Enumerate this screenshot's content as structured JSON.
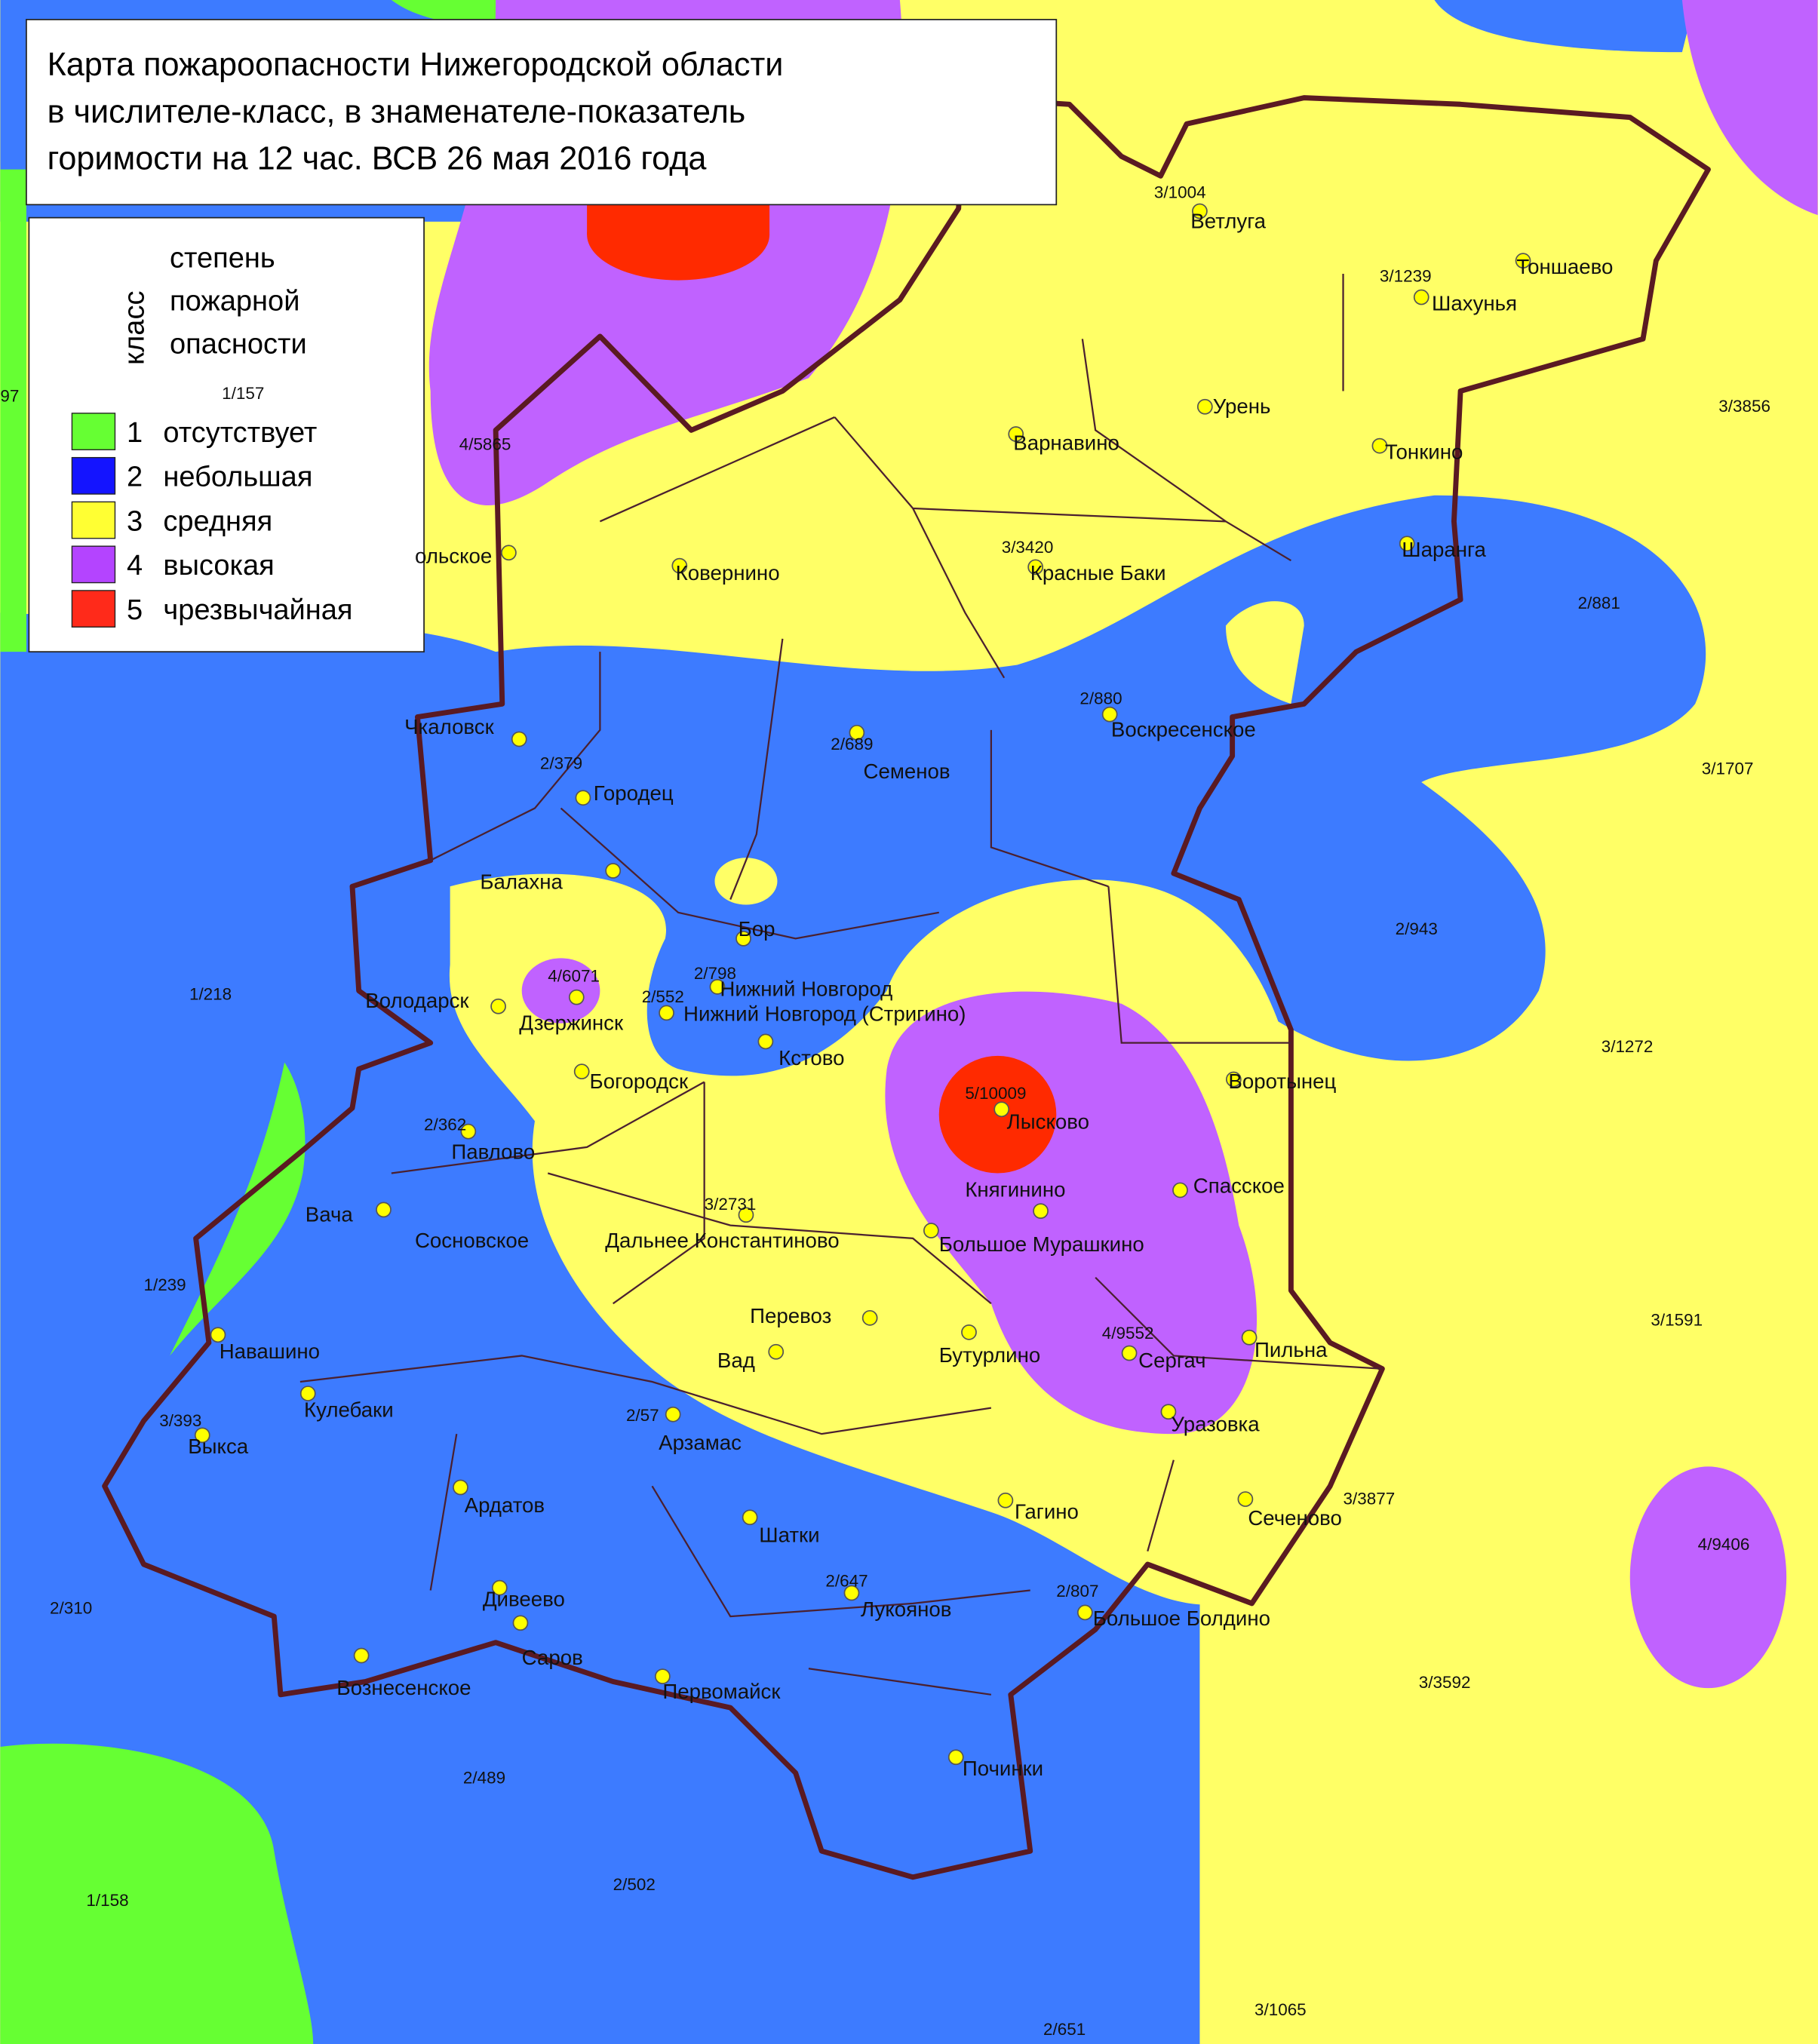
{
  "header": {
    "title_lines": [
      "Карта пожароопасности Нижегородской области",
      "в числителе-класс, в знаменателе-показатель",
      "горимости на 12 час. ВСВ 26 мая 2016 года"
    ]
  },
  "legend": {
    "heading": "класс",
    "subheading_lines": [
      "степень",
      "пожарной",
      "опасности"
    ],
    "items": [
      {
        "class": 1,
        "label": "отсутствует",
        "color": "#66ff33"
      },
      {
        "class": 2,
        "label": "небольшая",
        "color": "#1414ff"
      },
      {
        "class": 3,
        "label": "средняя",
        "color": "#ffff33"
      },
      {
        "class": 4,
        "label": "высокая",
        "color": "#b444ff"
      },
      {
        "class": 5,
        "label": "чрезвычайная",
        "color": "#ff2a1a"
      }
    ]
  },
  "settlements": [
    "Ветлуга",
    "Тоншаево",
    "Шахунья",
    "Урень",
    "Варнавино",
    "Тонкино",
    "Шаранга",
    "Красные Баки",
    "Ковернино",
    "ольское",
    "Воскресенское",
    "Семенов",
    "Чкаловск",
    "Городец",
    "Балахна",
    "Бор",
    "Володарск",
    "Дзержинск",
    "Нижний Новгород",
    "Нижний Новгород (Стригино)",
    "Кстово",
    "Богородск",
    "Воротынец",
    "Лысково",
    "Павлово",
    "Спасское",
    "Княгинино",
    "Вача",
    "Сосновское",
    "Дальнее Константиново",
    "Большое Мурашкино",
    "Перевоз",
    "Бутурлино",
    "Сергач",
    "Пильна",
    "Навашино",
    "Вад",
    "Кулебаки",
    "Выкса",
    "Арзамас",
    "Уразовка",
    "Ардатов",
    "Гагино",
    "Сеченово",
    "Шатки",
    "Лукоянов",
    "Дивеево",
    "Большое Болдино",
    "Саров",
    "Вознесенское",
    "Первомайск",
    "Починки"
  ],
  "stations": [
    "3/1004",
    "3/1239",
    "1/157",
    "97",
    "3/3856",
    "4/5865",
    "3/3420",
    "2/881",
    "2/880",
    "2/689",
    "3/1707",
    "2/379",
    "2/943",
    "1/218",
    "4/6071",
    "2/798",
    "2/552",
    "3/1272",
    "5/10009",
    "2/362",
    "3/2731",
    "1/239",
    "4/9552",
    "3/1591",
    "3/393",
    "2/57",
    "3/3877",
    "4/9406",
    "2/647",
    "2/807",
    "2/310",
    "3/3592",
    "2/489",
    "2/502",
    "1/158",
    "3/1065",
    "2/651"
  ]
}
